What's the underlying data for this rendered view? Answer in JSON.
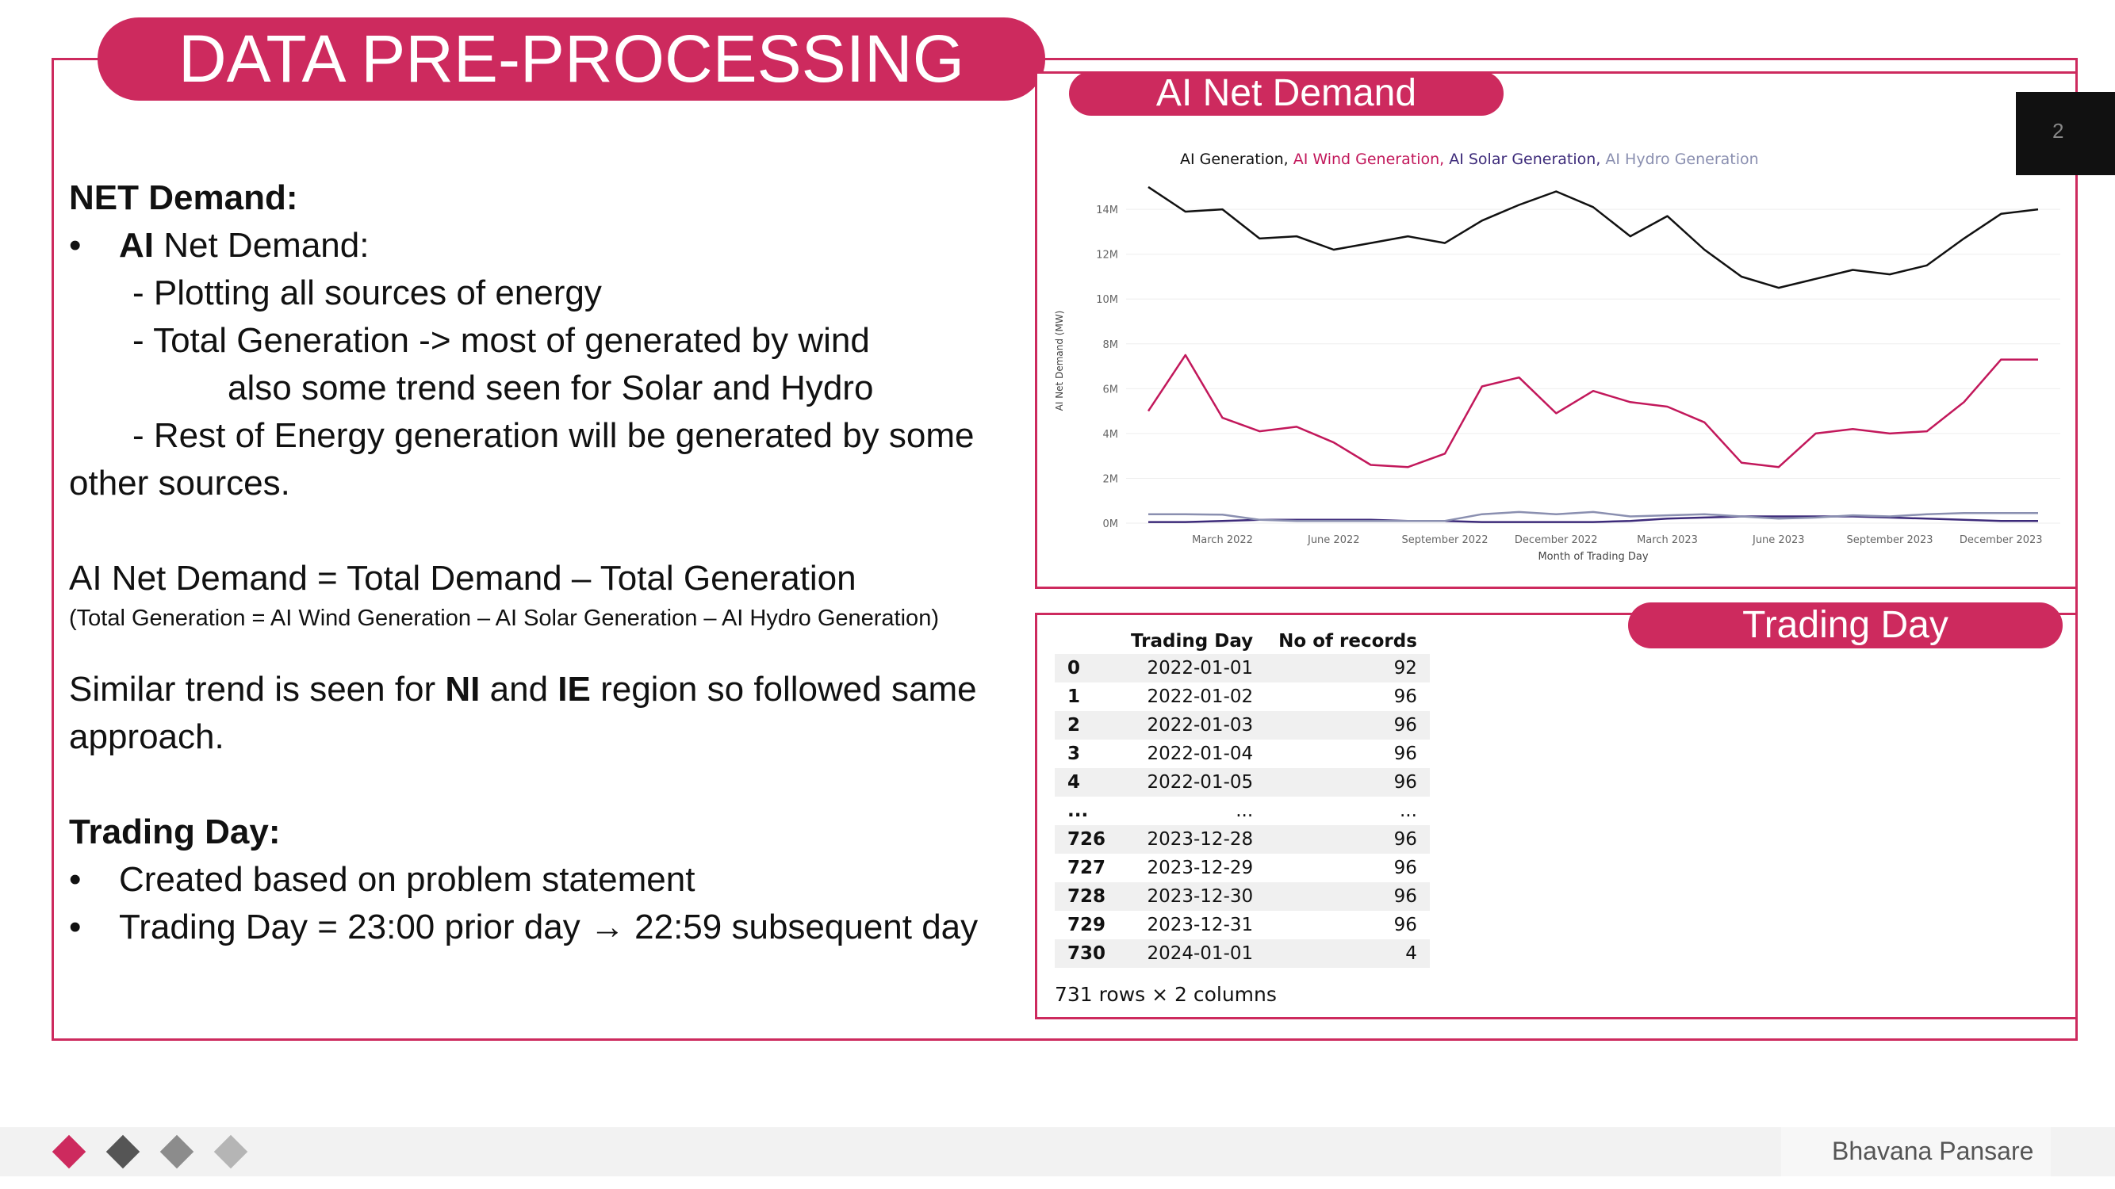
{
  "slide": {
    "title": "DATA PRE-PROCESSING",
    "page_number": "2",
    "footer_author": "Bhavana Pansare"
  },
  "left_text": {
    "net_demand_heading": "NET Demand:",
    "bullet_marker": "•",
    "ai_bold": "AI",
    "ai_rest": " Net Demand:",
    "sub1": "- Plotting all sources of energy",
    "sub2": "- Total Generation -> most of generated by wind",
    "sub2b": "also some trend seen for Solar and Hydro",
    "sub3": "- Rest of Energy generation will be generated by some",
    "sub3b": "other sources.",
    "formula": "AI Net Demand = Total Demand – Total Generation",
    "formula_note": "(Total Generation = AI Wind Generation – AI Solar Generation – AI Hydro Generation)",
    "similar_pre": "Similar trend is seen for ",
    "similar_ni": "NI",
    "similar_and": " and ",
    "similar_ie": "IE",
    "similar_post": " region so followed same",
    "similar_cont": "approach.",
    "trading_heading": "Trading Day:",
    "trading_b1": "Created based on problem statement",
    "trading_b2": "Trading Day = 23:00 prior day → 22:59 subsequent day"
  },
  "chart_panel": {
    "label": "AI Net Demand"
  },
  "table_panel": {
    "label": "Trading Day",
    "columns": [
      "",
      "Trading Day",
      "No of records"
    ],
    "rows": [
      [
        "0",
        "2022-01-01",
        "92"
      ],
      [
        "1",
        "2022-01-02",
        "96"
      ],
      [
        "2",
        "2022-01-03",
        "96"
      ],
      [
        "3",
        "2022-01-04",
        "96"
      ],
      [
        "4",
        "2022-01-05",
        "96"
      ],
      [
        "...",
        "...",
        "..."
      ],
      [
        "726",
        "2023-12-28",
        "96"
      ],
      [
        "727",
        "2023-12-29",
        "96"
      ],
      [
        "728",
        "2023-12-30",
        "96"
      ],
      [
        "729",
        "2023-12-31",
        "96"
      ],
      [
        "730",
        "2024-01-01",
        "4"
      ]
    ],
    "shape_text": "731 rows × 2 columns"
  },
  "colors": {
    "accent": "#cd2a5e",
    "series_total": "#111111",
    "series_wind": "#c2185b",
    "series_solar": "#3d2b7a",
    "series_hydro": "#8a8fb0"
  },
  "chart_data": {
    "type": "line",
    "title": "",
    "legend": [
      "AI Generation",
      "AI Wind Generation",
      "AI Solar Generation",
      "AI Hydro Generation"
    ],
    "xlabel": "Month of Trading Day",
    "ylabel": "AI Net Demand (MW)",
    "x": [
      "2022-01",
      "2022-02",
      "2022-03",
      "2022-04",
      "2022-05",
      "2022-06",
      "2022-07",
      "2022-08",
      "2022-09",
      "2022-10",
      "2022-11",
      "2022-12",
      "2023-01",
      "2023-02",
      "2023-03",
      "2023-04",
      "2023-05",
      "2023-06",
      "2023-07",
      "2023-08",
      "2023-09",
      "2023-10",
      "2023-11",
      "2023-12",
      "2024-01"
    ],
    "x_ticks": [
      "March 2022",
      "June 2022",
      "September 2022",
      "December 2022",
      "March 2023",
      "June 2023",
      "September 2023",
      "December 2023"
    ],
    "x_tick_index": [
      2,
      5,
      8,
      11,
      14,
      17,
      20,
      23
    ],
    "y_ticks": [
      "0M",
      "2M",
      "4M",
      "6M",
      "8M",
      "10M",
      "12M",
      "14M"
    ],
    "ylim": [
      0,
      14500000
    ],
    "series": [
      {
        "name": "AI Generation",
        "color": "#111111",
        "values": [
          15000000,
          13900000,
          14000000,
          12700000,
          12800000,
          12200000,
          12500000,
          12800000,
          12500000,
          13500000,
          14200000,
          14800000,
          14100000,
          12800000,
          13700000,
          12200000,
          11000000,
          10500000,
          10900000,
          11300000,
          11100000,
          11500000,
          12700000,
          13800000,
          14000000
        ]
      },
      {
        "name": "AI Wind Generation",
        "color": "#c2185b",
        "values": [
          5000000,
          7500000,
          4700000,
          4100000,
          4300000,
          3600000,
          2600000,
          2500000,
          3100000,
          6100000,
          6500000,
          4900000,
          5900000,
          5400000,
          5200000,
          4500000,
          2700000,
          2500000,
          4000000,
          4200000,
          4000000,
          4100000,
          5400000,
          7300000,
          7300000
        ]
      },
      {
        "name": "AI Solar Generation",
        "color": "#3d2b7a",
        "values": [
          50000,
          50000,
          100000,
          150000,
          150000,
          150000,
          150000,
          100000,
          100000,
          50000,
          50000,
          50000,
          50000,
          100000,
          200000,
          250000,
          300000,
          300000,
          300000,
          300000,
          250000,
          200000,
          150000,
          100000,
          100000
        ]
      },
      {
        "name": "AI Hydro Generation",
        "color": "#8a8fb0",
        "values": [
          400000,
          400000,
          380000,
          150000,
          100000,
          100000,
          100000,
          100000,
          100000,
          400000,
          500000,
          400000,
          500000,
          300000,
          350000,
          400000,
          300000,
          200000,
          250000,
          350000,
          300000,
          400000,
          450000,
          450000,
          450000
        ]
      }
    ]
  }
}
